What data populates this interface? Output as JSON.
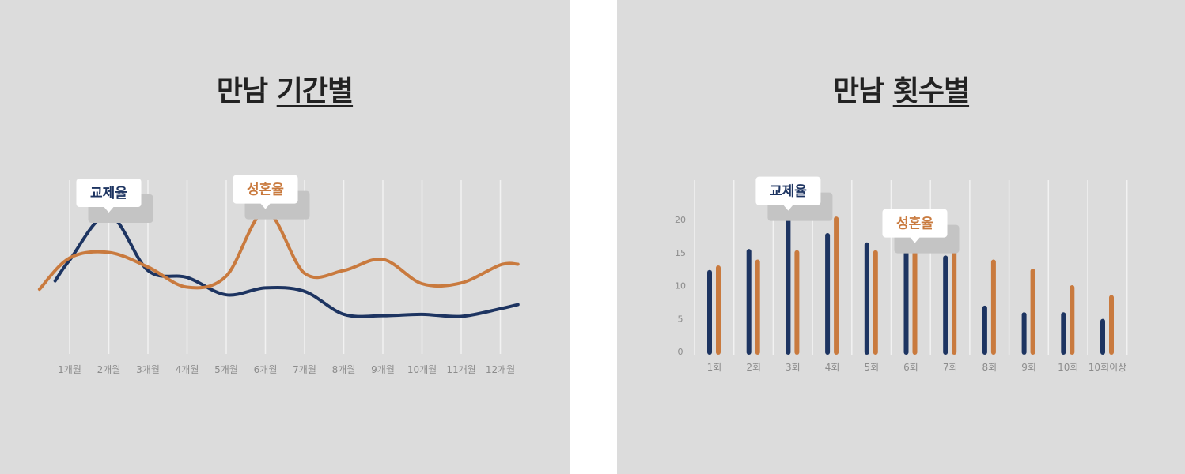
{
  "colors": {
    "background": "#dcdcdc",
    "navy": "#1d3461",
    "orange": "#c97a3e",
    "peak_navy": "#111111",
    "peak_orange": "#9e2b10",
    "grid": "#f2f2f2",
    "tick": "#8c8c8c",
    "callout_shadow": "#c4c4c4"
  },
  "chart_data": [
    {
      "type": "line",
      "title_prefix": "만남",
      "title_emph": "기간별",
      "categories": [
        "1개월",
        "2개월",
        "3개월",
        "4개월",
        "5개월",
        "6개월",
        "7개월",
        "8개월",
        "9개월",
        "10개월",
        "11개월",
        "12개월"
      ],
      "series": [
        {
          "name": "교제율",
          "color": "#1d3461",
          "values": [
            13.5,
            20,
            12,
            11,
            8.5,
            9.5,
            9,
            5.7,
            5.5,
            5.7,
            5.4,
            6.5
          ]
        },
        {
          "name": "성혼율",
          "color": "#c97a3e",
          "values": [
            13.8,
            14.6,
            12.5,
            9.6,
            11.2,
            20.5,
            11.6,
            12,
            13.6,
            10.1,
            10.2,
            12.8
          ]
        }
      ],
      "ylim": [
        0,
        25
      ],
      "grid": true,
      "callouts": [
        {
          "series": "교제율",
          "label": "교제율",
          "category": "2개월"
        },
        {
          "series": "성혼율",
          "label": "성혼율",
          "category": "6개월"
        }
      ]
    },
    {
      "type": "bar",
      "title_prefix": "만남",
      "title_emph": "횟수별",
      "categories": [
        "1회",
        "2회",
        "3회",
        "4회",
        "5회",
        "6회",
        "7회",
        "8회",
        "9회",
        "10회",
        "10회이상"
      ],
      "series": [
        {
          "name": "교제율",
          "color": "#1d3461",
          "values": [
            12,
            15.2,
            21,
            17.6,
            16.2,
            15.2,
            14.2,
            6.6,
            5.6,
            5.6,
            4.6
          ]
        },
        {
          "name": "성혼율",
          "color": "#c97a3e",
          "values": [
            12.7,
            13.6,
            15,
            20.1,
            15,
            16.1,
            15.2,
            13.6,
            12.2,
            9.7,
            8.2
          ]
        }
      ],
      "yticks": [
        "0",
        "5",
        "10",
        "15",
        "20"
      ],
      "ylim": [
        0,
        25
      ],
      "grid": true,
      "callouts": [
        {
          "series": "교제율",
          "label": "교제율",
          "category": "3회"
        },
        {
          "series": "성혼율",
          "label": "성혼율",
          "category": "6회"
        }
      ]
    }
  ]
}
